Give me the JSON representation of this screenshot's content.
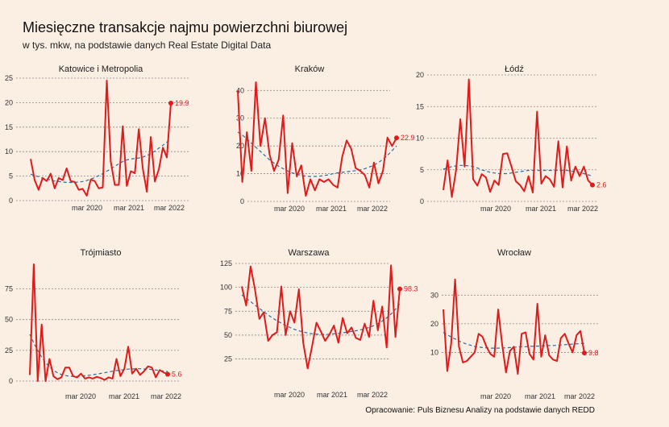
{
  "title": "Miesięczne transakcje najmu powierzchni biurowej",
  "subtitle": "w tys. mkw, na podstawie danych Real Estate Digital Data",
  "footer": "Opracowanie: Puls Biznesu Analizy na podstawie danych REDD",
  "colors": {
    "background": "#fbeee3",
    "series": "#e01b1b",
    "trend": "#2a6fa0",
    "grid": "#8a8a8a"
  },
  "chart_data": [
    {
      "type": "line",
      "title": "Katowice i Metropolia",
      "x_tick_labels": [
        "mar 2020",
        "mar 2021",
        "mar 2022"
      ],
      "ylim": [
        0,
        25
      ],
      "yticks": [
        0,
        5,
        10,
        15,
        20,
        25
      ],
      "end_label": "19.9",
      "series": [
        {
          "values": [
            8.5,
            4.2,
            2.2,
            4.6,
            4.0,
            5.5,
            2.5,
            4.6,
            4.2,
            6.6,
            4.0,
            3.8,
            2.2,
            2.4,
            1.0,
            4.3,
            4.0,
            2.5,
            2.7,
            24.5,
            8.0,
            3.2,
            3.2,
            15.2,
            3.0,
            6.0,
            5.6,
            14.6,
            6.5,
            1.8,
            13.0,
            3.9,
            6.4,
            10.8,
            8.8,
            19.9
          ]
        },
        {
          "type": "trend",
          "values": [
            5.4,
            5.1,
            4.9,
            4.6,
            4.4,
            4.2,
            4.0,
            3.9,
            3.8,
            3.7,
            3.7,
            3.7,
            3.8,
            3.9,
            4.1,
            4.4,
            4.7,
            5.1,
            5.5,
            6.0,
            6.5,
            7.0,
            7.5,
            8.0,
            8.3,
            8.5,
            8.6,
            8.7,
            8.9,
            9.2,
            9.6,
            10.1,
            10.7,
            11.3,
            11.9,
            12.5
          ]
        }
      ]
    },
    {
      "type": "line",
      "title": "Kraków",
      "x_tick_labels": [
        "mar 2020",
        "mar 2021",
        "mar 2022"
      ],
      "ylim": [
        0,
        43
      ],
      "yticks": [
        0,
        10,
        20,
        30,
        40
      ],
      "end_label": "22.9",
      "series": [
        {
          "values": [
            40.0,
            7.0,
            25.0,
            11.0,
            43.0,
            20.0,
            30.0,
            17.0,
            11.0,
            15.0,
            31.0,
            3.0,
            21.0,
            9.0,
            13.0,
            2.0,
            8.0,
            4.0,
            8.0,
            7.0,
            8.0,
            6.0,
            5.0,
            16.0,
            22.0,
            19.0,
            12.0,
            11.0,
            9.5,
            5.0,
            14.0,
            6.5,
            11.0,
            23.0,
            20.0,
            22.9
          ]
        },
        {
          "type": "trend",
          "values": [
            25.0,
            24.0,
            22.5,
            21.0,
            19.5,
            18.0,
            16.5,
            15.0,
            13.8,
            12.7,
            11.8,
            11.0,
            10.3,
            9.8,
            9.4,
            9.1,
            9.0,
            9.0,
            9.1,
            9.3,
            9.6,
            10.0,
            10.3,
            10.5,
            10.7,
            10.9,
            11.1,
            11.4,
            11.8,
            12.4,
            13.1,
            14.0,
            15.2,
            16.6,
            18.3,
            20.0
          ]
        }
      ]
    },
    {
      "type": "line",
      "title": "Łódź",
      "x_tick_labels": [
        "mar 2020",
        "mar 2021",
        "mar 2022"
      ],
      "ylim": [
        0,
        20
      ],
      "yticks": [
        0,
        5,
        10,
        15,
        20
      ],
      "end_label": "2.6",
      "series": [
        {
          "values": [
            1.8,
            6.5,
            0.7,
            5.0,
            13.0,
            5.5,
            19.3,
            3.5,
            2.5,
            4.3,
            3.8,
            1.5,
            3.3,
            2.6,
            7.5,
            7.6,
            5.5,
            3.2,
            2.6,
            1.6,
            4.0,
            1.4,
            14.2,
            2.8,
            4.0,
            3.5,
            2.3,
            9.5,
            2.2,
            8.7,
            3.3,
            5.5,
            4.0,
            5.5,
            3.3,
            2.6
          ]
        },
        {
          "type": "trend",
          "values": [
            5.1,
            5.3,
            5.5,
            5.6,
            5.7,
            5.7,
            5.6,
            5.5,
            5.3,
            5.0,
            4.8,
            4.6,
            4.5,
            4.4,
            4.4,
            4.4,
            4.5,
            4.6,
            4.7,
            4.8,
            4.9,
            4.9,
            4.9,
            4.9,
            4.9,
            4.9,
            4.9,
            4.9,
            4.9,
            4.9,
            4.8,
            4.7,
            4.6,
            4.4,
            4.2,
            4.0
          ]
        }
      ]
    },
    {
      "type": "line",
      "title": "Trójmiasto",
      "x_tick_labels": [
        "mar 2020",
        "mar 2021",
        "mar 2022"
      ],
      "ylim": [
        0,
        95
      ],
      "yticks": [
        0,
        25,
        50,
        75
      ],
      "end_label": "5.6",
      "series": [
        {
          "values": [
            5.0,
            95.0,
            0.0,
            46.0,
            0.0,
            18.0,
            4.0,
            1.5,
            3.0,
            11.0,
            11.0,
            4.0,
            3.0,
            6.0,
            2.0,
            3.0,
            2.0,
            3.5,
            2.5,
            1.0,
            3.0,
            2.0,
            18.0,
            4.0,
            10.0,
            28.0,
            6.0,
            10.0,
            5.0,
            8.0,
            12.0,
            11.0,
            3.0,
            9.0,
            7.0,
            5.6
          ]
        },
        {
          "type": "trend",
          "values": [
            38.0,
            31.0,
            25.0,
            19.5,
            15.0,
            11.5,
            8.8,
            6.8,
            5.4,
            4.5,
            4.0,
            3.8,
            3.8,
            4.0,
            4.3,
            4.7,
            5.2,
            5.7,
            6.2,
            6.8,
            7.4,
            8.0,
            8.5,
            9.0,
            9.4,
            9.7,
            9.9,
            10.0,
            10.0,
            9.9,
            9.7,
            9.4,
            9.0,
            8.6,
            8.2,
            7.8
          ]
        }
      ]
    },
    {
      "type": "line",
      "title": "Warszawa",
      "x_tick_labels": [
        "mar 2020",
        "mar 2021",
        "mar 2022"
      ],
      "ylim": [
        12,
        125
      ],
      "yticks": [
        25,
        50,
        75,
        100,
        125
      ],
      "end_label": "98.3",
      "series": [
        {
          "values": [
            101.0,
            81.0,
            122.0,
            98.0,
            67.0,
            74.0,
            44.0,
            50.0,
            53.0,
            101.0,
            50.0,
            75.0,
            63.0,
            98.0,
            42.0,
            15.0,
            38.0,
            63.0,
            54.0,
            44.0,
            51.0,
            60.0,
            42.0,
            68.0,
            52.0,
            58.0,
            47.0,
            45.0,
            62.0,
            48.0,
            86.0,
            55.0,
            80.0,
            37.0,
            123.0,
            48.0,
            98.3
          ]
        },
        {
          "type": "trend",
          "values": [
            92.0,
            88.5,
            85.0,
            81.5,
            78.0,
            74.5,
            71.0,
            68.0,
            65.0,
            62.5,
            60.0,
            58.0,
            56.0,
            54.5,
            53.2,
            52.2,
            51.5,
            51.0,
            50.8,
            50.8,
            51.0,
            51.4,
            51.9,
            52.5,
            53.1,
            53.8,
            54.6,
            55.5,
            56.6,
            58.0,
            59.8,
            62.0,
            64.7,
            68.0,
            72.0,
            77.0,
            83.0
          ]
        }
      ]
    },
    {
      "type": "line",
      "title": "Wrocław",
      "x_tick_labels": [
        "mar 2020",
        "mar 2021",
        "mar 2022"
      ],
      "ylim": [
        0,
        36
      ],
      "yticks": [
        10,
        20,
        30
      ],
      "end_label": "9.8",
      "series": [
        {
          "values": [
            25.0,
            3.5,
            13.0,
            35.5,
            12.0,
            6.5,
            7.0,
            8.5,
            10.0,
            16.5,
            15.5,
            12.0,
            9.5,
            8.5,
            25.0,
            13.0,
            3.0,
            10.5,
            12.0,
            2.5,
            16.5,
            17.0,
            9.5,
            7.5,
            27.0,
            8.5,
            16.0,
            9.0,
            7.5,
            7.0,
            15.0,
            16.5,
            13.0,
            10.0,
            16.0,
            17.5,
            9.8
          ]
        },
        {
          "type": "trend",
          "values": [
            17.0,
            16.2,
            15.4,
            14.7,
            14.0,
            13.4,
            12.9,
            12.5,
            12.1,
            11.9,
            11.7,
            11.6,
            11.5,
            11.5,
            11.5,
            11.6,
            11.6,
            11.7,
            11.8,
            11.9,
            12.0,
            12.0,
            12.1,
            12.2,
            12.2,
            12.3,
            12.3,
            12.4,
            12.4,
            12.5,
            12.6,
            12.7,
            12.8,
            12.9,
            13.0,
            13.1,
            13.2
          ]
        }
      ]
    }
  ]
}
